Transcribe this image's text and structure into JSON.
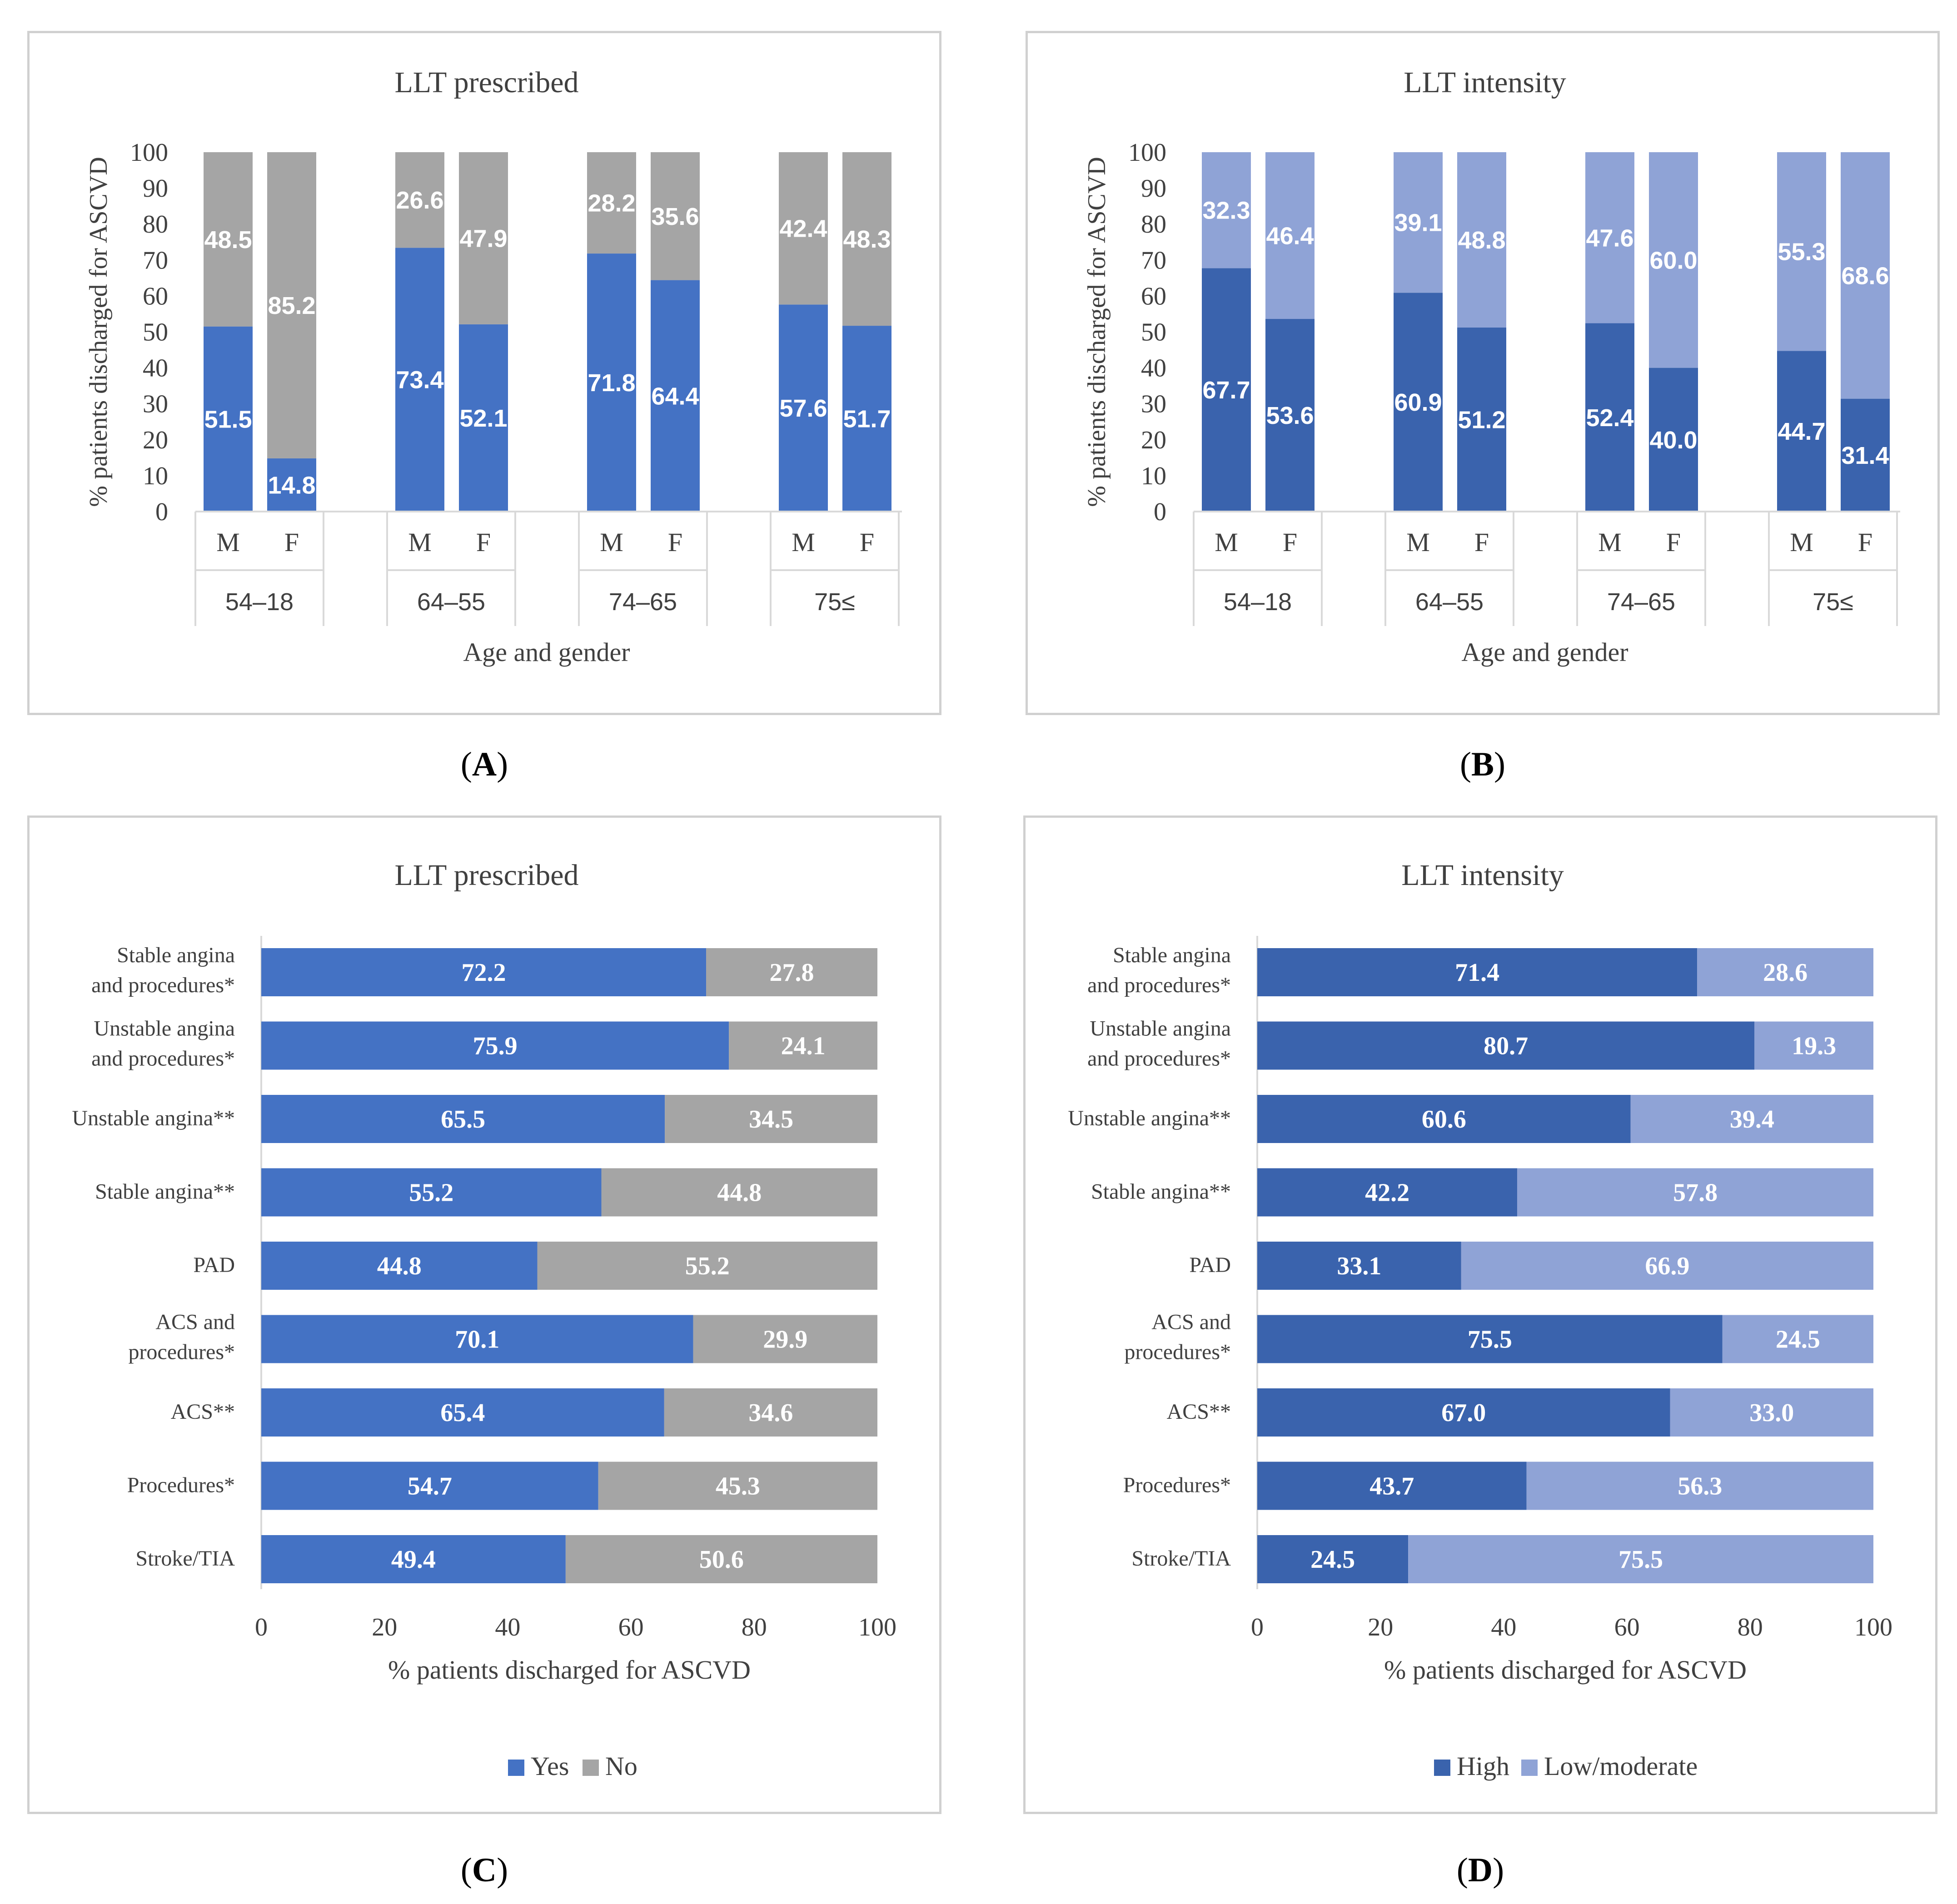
{
  "colors": {
    "yes": "#4472C4",
    "no": "#A5A5A5",
    "high": "#3A63AD",
    "low_moderate": "#8FA3D6"
  },
  "chart_data": [
    {
      "id": "A",
      "panel_label": "A",
      "type": "bar",
      "orientation": "vertical",
      "stacked": true,
      "title": "LLT prescribed",
      "xlabel": "Age and gender",
      "ylabel": "% patients discharged for ASCVD",
      "ylim": [
        0,
        100
      ],
      "yticks": [
        0,
        10,
        20,
        30,
        40,
        50,
        60,
        70,
        80,
        90,
        100
      ],
      "groups": [
        "54–18",
        "64–55",
        "74–65",
        "75≤"
      ],
      "subcategories": [
        "M",
        "F"
      ],
      "series": [
        {
          "name": "Yes",
          "color_key": "yes",
          "label_color": "#ffffff",
          "values": [
            51.5,
            14.8,
            73.4,
            52.1,
            71.8,
            64.4,
            57.6,
            51.7
          ]
        },
        {
          "name": "No",
          "color_key": "no",
          "label_color": "#ffffff",
          "values": [
            48.5,
            85.2,
            26.6,
            47.9,
            28.2,
            35.6,
            42.4,
            48.3
          ]
        }
      ],
      "data_labels": {
        "Yes": [
          "51.5",
          "14.8",
          "73.4",
          "52.1",
          "71.8",
          "64.4",
          "57.6",
          "51.7"
        ],
        "No": [
          "48.5",
          "85.2",
          "26.6",
          "47.9",
          "28.2",
          "35.6",
          "42.4",
          "48.3"
        ]
      },
      "legend": null
    },
    {
      "id": "B",
      "panel_label": "B",
      "type": "bar",
      "orientation": "vertical",
      "stacked": true,
      "title": "LLT intensity",
      "xlabel": "Age and gender",
      "ylabel": "% patients discharged for ASCVD",
      "ylim": [
        0,
        100
      ],
      "yticks": [
        0,
        10,
        20,
        30,
        40,
        50,
        60,
        70,
        80,
        90,
        100
      ],
      "groups": [
        "54–18",
        "64–55",
        "74–65",
        "75≤"
      ],
      "subcategories": [
        "M",
        "F"
      ],
      "series": [
        {
          "name": "High",
          "color_key": "high",
          "label_color": "#ffffff",
          "values": [
            67.7,
            53.6,
            60.9,
            51.2,
            52.4,
            40.0,
            44.7,
            31.4
          ]
        },
        {
          "name": "Low/moderate",
          "color_key": "low_moderate",
          "label_color": "#ffffff",
          "values": [
            32.3,
            46.4,
            39.1,
            48.8,
            47.6,
            60.0,
            55.3,
            68.6
          ]
        }
      ],
      "data_labels": {
        "High": [
          "67.7",
          "53.6",
          "60.9",
          "51.2",
          "52.4",
          "40.0",
          "44.7",
          "31.4"
        ],
        "Low/moderate": [
          "32.3",
          "46.4",
          "39.1",
          "48.8",
          "47.6",
          "60.0",
          "55.3",
          "68.6"
        ]
      },
      "legend": null
    },
    {
      "id": "C",
      "panel_label": "C",
      "type": "bar",
      "orientation": "horizontal",
      "stacked": true,
      "title": "LLT prescribed",
      "xlabel": "% patients discharged for ASCVD",
      "ylabel": "",
      "xlim": [
        0,
        100
      ],
      "xticks": [
        "0",
        "20",
        "40",
        "60",
        "80",
        "100"
      ],
      "categories": [
        [
          "Stable angina",
          "and procedures*"
        ],
        [
          "Unstable angina",
          "and procedures*"
        ],
        [
          "Unstable angina**"
        ],
        [
          "Stable angina**"
        ],
        [
          "PAD"
        ],
        [
          "ACS and",
          "procedures*"
        ],
        [
          "ACS**"
        ],
        [
          "Procedures*"
        ],
        [
          "Stroke/TIA"
        ]
      ],
      "series": [
        {
          "name": "Yes",
          "color_key": "yes",
          "label_color": "#ffffff",
          "values": [
            72.2,
            75.9,
            65.5,
            55.2,
            44.8,
            70.1,
            65.4,
            54.7,
            49.4
          ]
        },
        {
          "name": "No",
          "color_key": "no",
          "label_color": "#ffffff",
          "values": [
            27.8,
            24.1,
            34.5,
            44.8,
            55.2,
            29.9,
            34.6,
            45.3,
            50.6
          ]
        }
      ],
      "data_labels": {
        "Yes": [
          "72.2",
          "75.9",
          "65.5",
          "55.2",
          "44.8",
          "70.1",
          "65.4",
          "54.7",
          "49.4"
        ],
        "No": [
          "27.8",
          "24.1",
          "34.5",
          "44.8",
          "55.2",
          "29.9",
          "34.6",
          "45.3",
          "50.6"
        ]
      },
      "legend": {
        "position": "bottom",
        "entries": [
          "Yes",
          "No"
        ]
      }
    },
    {
      "id": "D",
      "panel_label": "D",
      "type": "bar",
      "orientation": "horizontal",
      "stacked": true,
      "title": "LLT intensity",
      "xlabel": "% patients discharged for ASCVD",
      "ylabel": "",
      "xlim": [
        0,
        100
      ],
      "xticks": [
        "0",
        "20",
        "40",
        "60",
        "80",
        "100"
      ],
      "categories": [
        [
          "Stable angina",
          "and procedures*"
        ],
        [
          "Unstable angina",
          "and procedures*"
        ],
        [
          "Unstable angina**"
        ],
        [
          "Stable angina**"
        ],
        [
          "PAD"
        ],
        [
          "ACS and",
          "procedures*"
        ],
        [
          "ACS**"
        ],
        [
          "Procedures*"
        ],
        [
          "Stroke/TIA"
        ]
      ],
      "series": [
        {
          "name": "High",
          "color_key": "high",
          "label_color": "#ffffff",
          "values": [
            71.4,
            80.7,
            60.6,
            42.2,
            33.1,
            75.5,
            67.0,
            43.7,
            24.5
          ]
        },
        {
          "name": "Low/moderate",
          "color_key": "low_moderate",
          "label_color": "#ffffff",
          "values": [
            28.6,
            19.3,
            39.4,
            57.8,
            66.9,
            24.5,
            33.0,
            56.3,
            75.5
          ]
        }
      ],
      "data_labels": {
        "High": [
          "71.4",
          "80.7",
          "60.6",
          "42.2",
          "33.1",
          "75.5",
          "67.0",
          "43.7",
          "24.5"
        ],
        "Low/moderate": [
          "28.6",
          "19.3",
          "39.4",
          "57.8",
          "66.9",
          "24.5",
          "33.0",
          "56.3",
          "75.5"
        ]
      },
      "legend": {
        "position": "bottom",
        "entries": [
          "High",
          "Low/moderate"
        ]
      }
    }
  ]
}
